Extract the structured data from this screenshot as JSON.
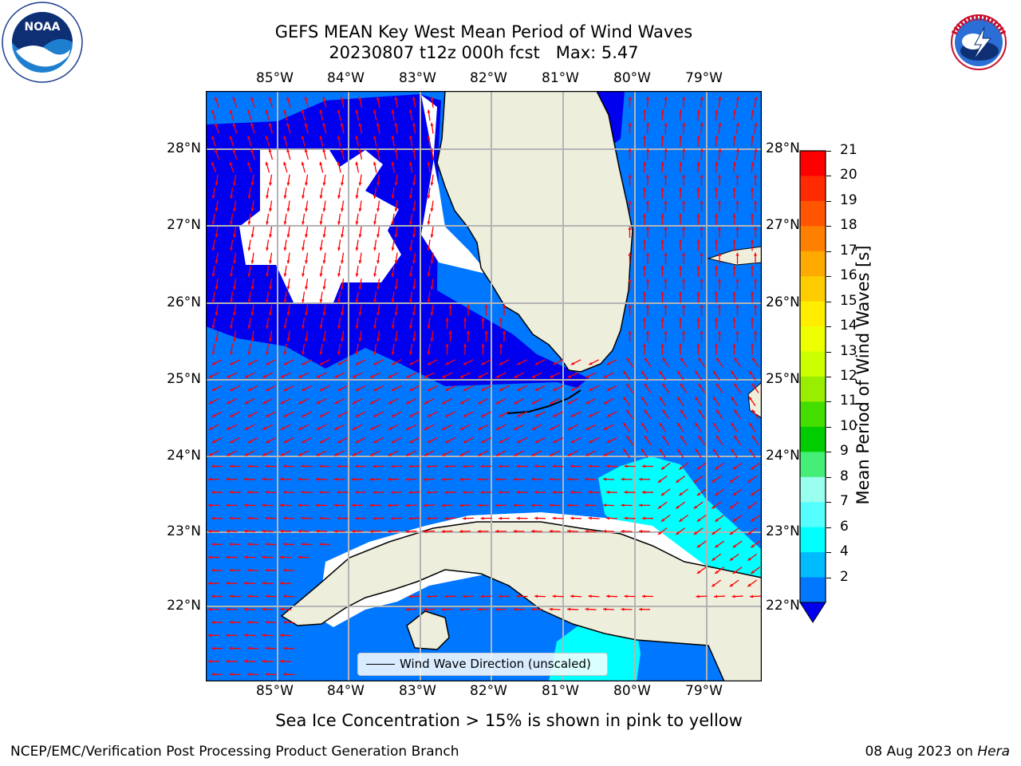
{
  "header": {
    "title_line1": "GEFS MEAN Key West Mean Period of Wind Waves",
    "title_line2": "20230807 t12z 000h fcst   Max: 5.47"
  },
  "logos": {
    "left": "NOAA",
    "left_ring_text": "NATIONAL OCEANIC AND ATMOSPHERIC ADMINISTRATION · U.S. DEPARTMENT OF COMMERCE",
    "right_ring_text": "NATIONAL WEATHER SERVICE"
  },
  "map": {
    "lon_ticks": [
      "85°W",
      "84°W",
      "83°W",
      "82°W",
      "81°W",
      "80°W",
      "79°W"
    ],
    "lat_ticks": [
      "28°N",
      "27°N",
      "26°N",
      "25°N",
      "24°N",
      "23°N",
      "22°N"
    ],
    "legend_label": "Wind Wave Direction (unscaled)"
  },
  "colorbar": {
    "label": "Mean Period of Wind Waves [s]",
    "ticks": [
      "21",
      "20",
      "19",
      "18",
      "17",
      "16",
      "15",
      "14",
      "13",
      "12",
      "11",
      "10",
      "9",
      "8",
      "7",
      "6",
      "4",
      "2"
    ],
    "colors": [
      "#ff0000",
      "#ff2a00",
      "#ff5500",
      "#ff7f00",
      "#ffaa00",
      "#ffcc00",
      "#ffee00",
      "#eeff00",
      "#ccff00",
      "#99ee00",
      "#44dd00",
      "#00cc00",
      "#44ee77",
      "#99ffee",
      "#55ffff",
      "#00ffff",
      "#00bbff",
      "#0077ff"
    ],
    "under_color": "#0000ee"
  },
  "footer": {
    "note": "Sea Ice Concentration > 15% is shown in pink to yellow",
    "credit": "NCEP/EMC/Verification Post Processing Product Generation Branch",
    "date_prefix": "08 Aug 2023 on ",
    "machine": "Hera"
  },
  "colors": {
    "period_under_2": "#0000ee",
    "period_2_4": "#0077ff",
    "period_4_6": "#00ffff",
    "land": "#eeeedd",
    "grid": "#b4b4b4",
    "arrow": "#ff0000"
  }
}
